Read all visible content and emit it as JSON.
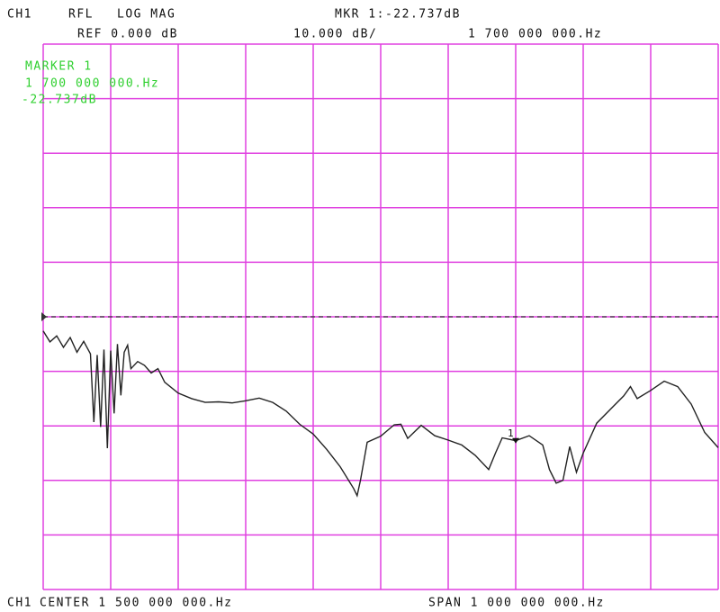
{
  "chart_data": {
    "type": "line",
    "header": {
      "channel": "CH1",
      "measurement": "RFL",
      "format": "LOG MAG",
      "reference": "REF 0.000 dB",
      "marker_readout": "MKR 1:-22.737dB",
      "scale": "10.000 dB/",
      "marker_frequency": "1 700 000 000.Hz"
    },
    "marker_box": {
      "title": "MARKER 1",
      "frequency": "1 700 000 000.Hz",
      "value": "-22.737dB"
    },
    "footer": {
      "channel": "CH1",
      "center": "CENTER 1 500 000 000.Hz",
      "span": "SPAN 1 000 000 000.Hz"
    },
    "xlim": [
      1000000000,
      2000000000
    ],
    "ylim": [
      -50,
      50
    ],
    "xticks": [
      1000000000,
      1100000000,
      1200000000,
      1300000000,
      1400000000,
      1500000000,
      1600000000,
      1700000000,
      1800000000,
      1900000000,
      2000000000
    ],
    "yticks": [
      -50,
      -40,
      -30,
      -20,
      -10,
      0,
      10,
      20,
      30,
      40,
      50
    ],
    "grid": true,
    "grid_color": "#e040e0",
    "reference_level": 0,
    "marker": {
      "label": "1",
      "x": 1700000000,
      "y": -22.737
    },
    "series": [
      {
        "color": "#222222",
        "x": [
          1000000000,
          1010000000,
          1020000000,
          1030000000,
          1040000000,
          1050000000,
          1060000000,
          1070000000,
          1075000000,
          1080000000,
          1085000000,
          1090000000,
          1095000000,
          1100000000,
          1105000000,
          1110000000,
          1115000000,
          1120000000,
          1125000000,
          1130000000,
          1140000000,
          1150000000,
          1160000000,
          1170000000,
          1180000000,
          1200000000,
          1220000000,
          1240000000,
          1260000000,
          1280000000,
          1300000000,
          1320000000,
          1340000000,
          1360000000,
          1380000000,
          1400000000,
          1420000000,
          1440000000,
          1460000000,
          1465000000,
          1470000000,
          1480000000,
          1500000000,
          1520000000,
          1530000000,
          1540000000,
          1560000000,
          1580000000,
          1600000000,
          1620000000,
          1640000000,
          1660000000,
          1670000000,
          1680000000,
          1700000000,
          1720000000,
          1740000000,
          1750000000,
          1760000000,
          1770000000,
          1780000000,
          1790000000,
          1800000000,
          1820000000,
          1840000000,
          1860000000,
          1870000000,
          1880000000,
          1900000000,
          1920000000,
          1940000000,
          1960000000,
          1980000000,
          2000000000
        ],
        "values": [
          -2.6,
          -4.6,
          -3.5,
          -5.6,
          -3.8,
          -6.5,
          -4.5,
          -6.8,
          -19.3,
          -7.0,
          -20.2,
          -6.0,
          -24.1,
          -6.2,
          -17.7,
          -5.0,
          -14.4,
          -6.5,
          -5.2,
          -9.5,
          -8.2,
          -8.9,
          -10.3,
          -9.5,
          -12.0,
          -14.0,
          -15.0,
          -15.7,
          -15.6,
          -15.8,
          -15.4,
          -14.9,
          -15.7,
          -17.3,
          -19.7,
          -21.5,
          -24.3,
          -27.5,
          -31.5,
          -32.8,
          -30.0,
          -23.0,
          -21.9,
          -19.8,
          -19.7,
          -22.3,
          -19.9,
          -21.8,
          -22.6,
          -23.5,
          -25.4,
          -28.0,
          -25.0,
          -22.2,
          -22.7,
          -21.8,
          -23.5,
          -28.0,
          -30.5,
          -30.0,
          -23.8,
          -28.5,
          -25.0,
          -19.5,
          -17.0,
          -14.5,
          -12.8,
          -15.0,
          -13.5,
          -11.8,
          -12.8,
          -16.0,
          -21.2,
          -24.0
        ]
      }
    ]
  }
}
